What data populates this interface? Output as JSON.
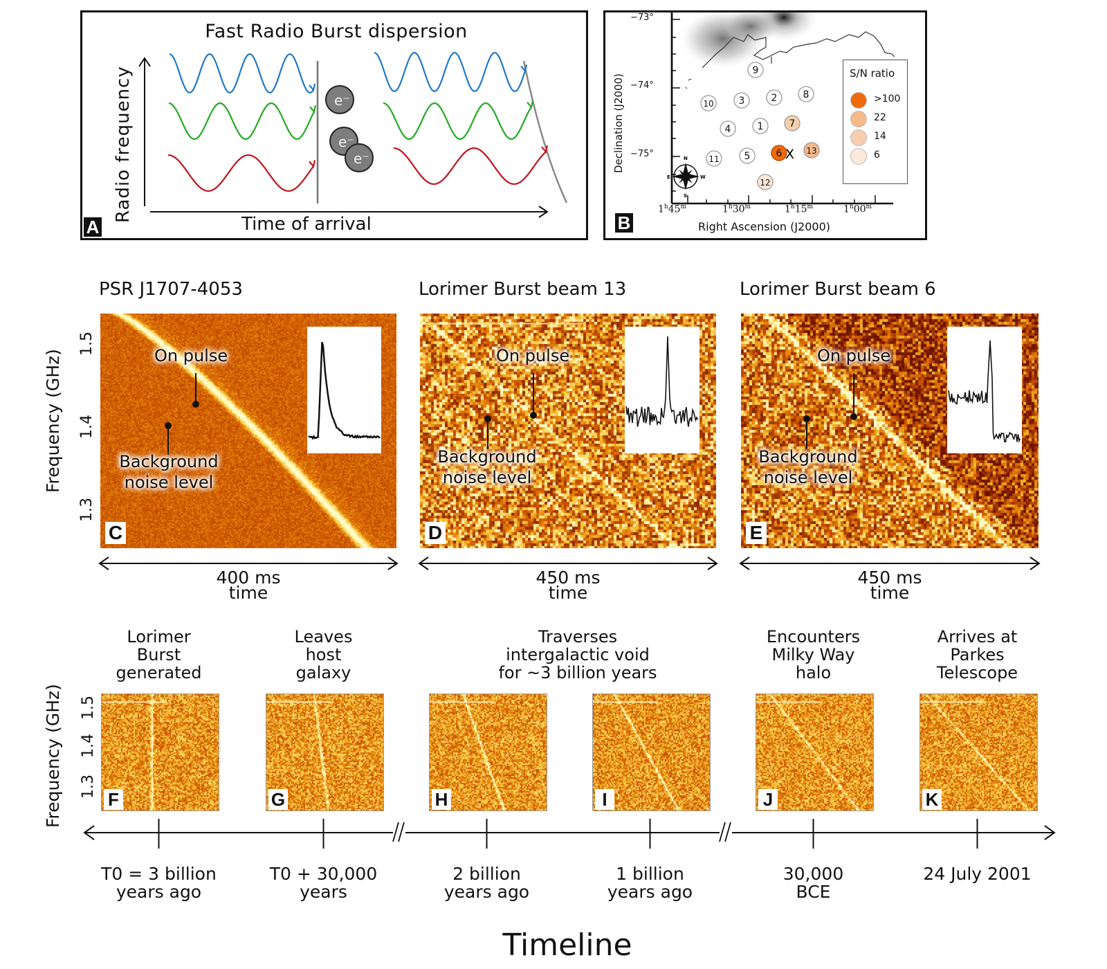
{
  "panelA": {
    "letter": "A",
    "title": "Fast Radio Burst dispersion",
    "ylabel": "Radio frequency",
    "xlabel": "Time of arrival",
    "electron_label": "e⁻",
    "wave_colors": [
      "#1f78c8",
      "#22aa22",
      "#c0141c"
    ]
  },
  "panelB": {
    "letter": "B",
    "ylabel": "Declination (J2000)",
    "xlabel": "Right Ascension (J2000)",
    "yticks": [
      "−73°",
      "−74°",
      "−75°"
    ],
    "xticks": [
      "1h45m",
      "1h30m",
      "1h15m",
      "1h00m"
    ],
    "xtick_parts": [
      {
        "h": "1",
        "m": "45"
      },
      {
        "h": "1",
        "m": "30"
      },
      {
        "h": "1",
        "m": "15"
      },
      {
        "h": "1",
        "m": "00"
      }
    ],
    "burst_marker": "X",
    "compass": {
      "n": "N",
      "s": "S",
      "e": "E",
      "w": "W"
    },
    "legend": {
      "title": "S/N ratio",
      "items": [
        {
          "label": ">100",
          "color": "#ee6a0c"
        },
        {
          "label": "22",
          "color": "#f5b98a"
        },
        {
          "label": "14",
          "color": "#f8cfae"
        },
        {
          "label": "6",
          "color": "#fde9da"
        }
      ]
    },
    "beams": [
      {
        "id": "1",
        "sn": null
      },
      {
        "id": "2",
        "sn": null
      },
      {
        "id": "3",
        "sn": null
      },
      {
        "id": "4",
        "sn": null
      },
      {
        "id": "5",
        "sn": null
      },
      {
        "id": "6",
        "sn": ">100"
      },
      {
        "id": "7",
        "sn": "14"
      },
      {
        "id": "8",
        "sn": null
      },
      {
        "id": "9",
        "sn": null
      },
      {
        "id": "10",
        "sn": null
      },
      {
        "id": "11",
        "sn": null
      },
      {
        "id": "12",
        "sn": "6"
      },
      {
        "id": "13",
        "sn": "22"
      }
    ]
  },
  "spectra": [
    {
      "letter": "C",
      "title": "PSR J1707-4053",
      "duration": "400 ms",
      "time_label": "time",
      "on_pulse": "On pulse",
      "background": [
        "Background",
        "noise level"
      ]
    },
    {
      "letter": "D",
      "title": "Lorimer Burst beam 13",
      "duration": "450 ms",
      "time_label": "time",
      "on_pulse": "On pulse",
      "background": [
        "Background",
        "noise level"
      ]
    },
    {
      "letter": "E",
      "title": "Lorimer Burst beam 6",
      "duration": "450 ms",
      "time_label": "time",
      "on_pulse": "On pulse",
      "background": [
        "Background",
        "noise level"
      ]
    }
  ],
  "freq_axis": {
    "label": "Frequency (GHz)",
    "ticks": [
      "1.5",
      "1.4",
      "1.3"
    ]
  },
  "timeline": {
    "title": "Timeline",
    "stages": [
      {
        "letter": "F",
        "caption": [
          "Lorimer",
          "Burst",
          "generated"
        ],
        "time": [
          "T0 = 3 billion",
          "years ago"
        ]
      },
      {
        "letter": "G",
        "caption": [
          "Leaves",
          "host",
          "galaxy"
        ],
        "time": [
          "T0 + 30,000",
          "years"
        ]
      },
      {
        "letter": "H",
        "caption": [],
        "time": [
          "2 billion",
          "years ago"
        ]
      },
      {
        "letter": "I",
        "caption": [],
        "time": [
          "1 billion",
          "years ago"
        ]
      },
      {
        "letter": "J",
        "caption": [
          "Encounters",
          "Milky Way",
          "halo"
        ],
        "time": [
          "30,000",
          "BCE"
        ]
      },
      {
        "letter": "K",
        "caption": [
          "Arrives at",
          "Parkes",
          "Telescope"
        ],
        "time": [
          "24 July 2001"
        ]
      }
    ],
    "shared_caption": [
      "Traverses",
      "intergalactic void",
      "for ~3 billion years"
    ]
  }
}
